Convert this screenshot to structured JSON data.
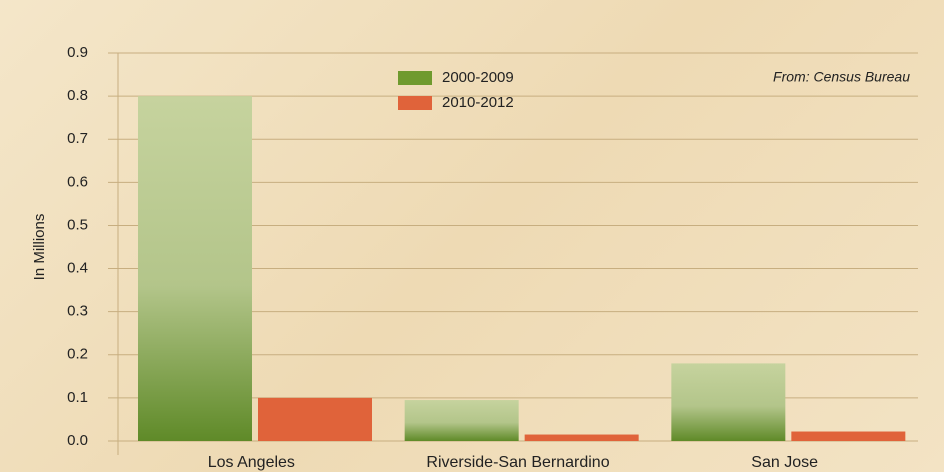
{
  "chart_data": {
    "type": "bar",
    "categories": [
      "Los Angeles",
      "Riverside-San Bernardino",
      "San Jose"
    ],
    "series": [
      {
        "name": "2000-2009",
        "color": "#6f9a2e",
        "values": [
          0.8,
          0.095,
          0.18
        ]
      },
      {
        "name": "2010-2012",
        "color": "#e0633a",
        "values": [
          0.1,
          0.015,
          0.022
        ]
      }
    ],
    "ylabel": "In Millions",
    "annotation": "From: Census Bureau",
    "ylim": [
      0,
      0.9
    ],
    "yticks": [
      {
        "value": 0,
        "label": "0.0"
      },
      0.1,
      0.2,
      0.3,
      0.4,
      0.5,
      0.6,
      0.7,
      0.8,
      0.9
    ],
    "grid": true
  }
}
